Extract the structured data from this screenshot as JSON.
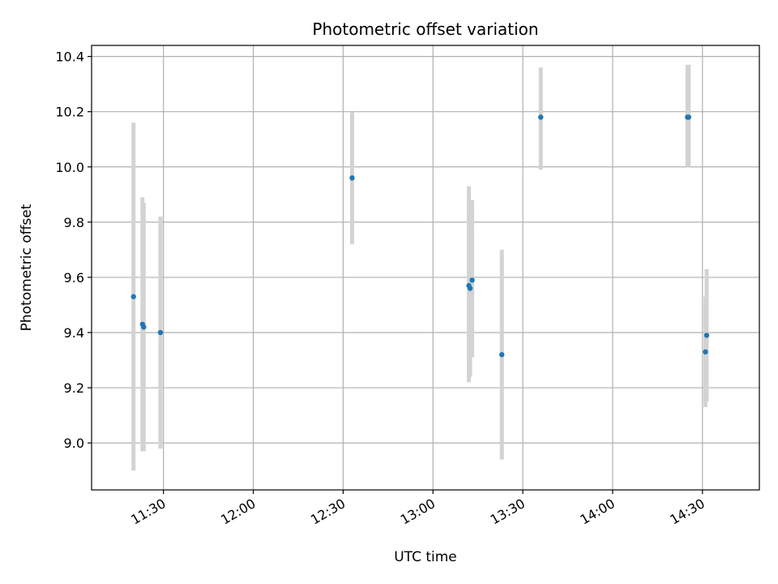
{
  "chart_data": {
    "type": "scatter",
    "title": "Photometric offset variation",
    "xlabel": "UTC time",
    "ylabel": "Photometric offset",
    "x_tick_labels": [
      "11:30",
      "12:00",
      "12:30",
      "13:00",
      "13:30",
      "14:00",
      "14:30"
    ],
    "y_tick_labels": [
      "9.0",
      "9.2",
      "9.4",
      "9.6",
      "9.8",
      "10.0",
      "10.2",
      "10.4"
    ],
    "y_ticks": [
      9.0,
      9.2,
      9.4,
      9.6,
      9.8,
      10.0,
      10.2,
      10.4
    ],
    "xlim": [
      "11:06",
      "14:49"
    ],
    "ylim": [
      8.83,
      10.44
    ],
    "grid": true,
    "marker_color": "#1f77b4",
    "errorbar_color": "#d3d3d3",
    "points": [
      {
        "x": "11:20",
        "y": 9.53,
        "err_low": 8.9,
        "err_high": 10.16
      },
      {
        "x": "11:23",
        "y": 9.43,
        "err_low": 8.97,
        "err_high": 9.89
      },
      {
        "x": "11:23",
        "y": 9.42,
        "err_low": 8.97,
        "err_high": 9.87
      },
      {
        "x": "11:29",
        "y": 9.4,
        "err_low": 8.98,
        "err_high": 9.82
      },
      {
        "x": "12:33",
        "y": 9.96,
        "err_low": 9.72,
        "err_high": 10.2
      },
      {
        "x": "13:12",
        "y": 9.57,
        "err_low": 9.22,
        "err_high": 9.93
      },
      {
        "x": "13:12",
        "y": 9.56,
        "err_low": 9.24,
        "err_high": 9.88
      },
      {
        "x": "13:12",
        "y": 9.59,
        "err_low": 9.31,
        "err_high": 9.88
      },
      {
        "x": "13:23",
        "y": 9.32,
        "err_low": 8.94,
        "err_high": 9.7
      },
      {
        "x": "13:36",
        "y": 10.18,
        "err_low": 9.99,
        "err_high": 10.36
      },
      {
        "x": "14:25",
        "y": 10.18,
        "err_low": 10.0,
        "err_high": 10.37
      },
      {
        "x": "14:25",
        "y": 10.18,
        "err_low": 10.0,
        "err_high": 10.37
      },
      {
        "x": "14:31",
        "y": 9.33,
        "err_low": 9.13,
        "err_high": 9.53
      },
      {
        "x": "14:31",
        "y": 9.39,
        "err_low": 9.15,
        "err_high": 9.63
      }
    ]
  }
}
